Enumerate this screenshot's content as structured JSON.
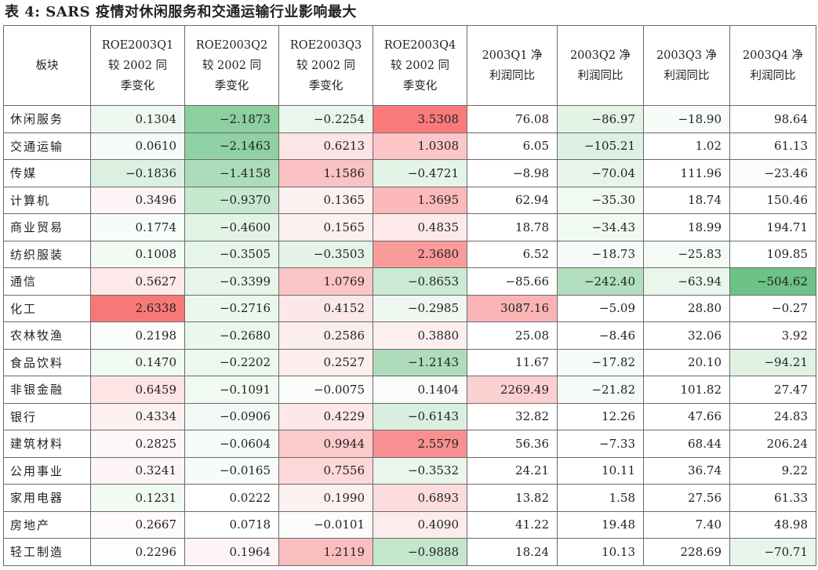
{
  "title": "表 4:  SARS 疫情对休闲服务和交通运输行业影响最大",
  "headers": [
    [
      "板块"
    ],
    [
      "ROE2003Q1",
      "较 2002 同",
      "季变化"
    ],
    [
      "ROE2003Q2",
      "较 2002 同",
      "季变化"
    ],
    [
      "ROE2003Q3",
      "较 2002 同",
      "季变化"
    ],
    [
      "ROE2003Q4",
      "较 2002 同",
      "季变化"
    ],
    [
      "2003Q1 净",
      "利润同比"
    ],
    [
      "2003Q2 净",
      "利润同比"
    ],
    [
      "2003Q3 净",
      "利润同比"
    ],
    [
      "2003Q4 净",
      "利润同比"
    ]
  ],
  "rows": [
    {
      "name": "休闲服务",
      "values": [
        "0.1304",
        "-2.1873",
        "-0.2254",
        "3.5308",
        "76.08",
        "-86.97",
        "-18.90",
        "98.64"
      ],
      "colors": [
        "#eef8f0",
        "#8cd0a0",
        "#eaf6ec",
        "#fa7a7a",
        "#ffffff",
        "#e3f3e6",
        "#f7fcf8",
        "#ffffff"
      ]
    },
    {
      "name": "交通运输",
      "values": [
        "0.0610",
        "-2.1463",
        "0.6213",
        "1.0308",
        "6.05",
        "-105.21",
        "1.02",
        "61.13"
      ],
      "colors": [
        "#f5fbf6",
        "#8fd1a2",
        "#fde4e5",
        "#fcc6c7",
        "#ffffff",
        "#dcf1e1",
        "#ffffff",
        "#ffffff"
      ]
    },
    {
      "name": "传媒",
      "values": [
        "-0.1836",
        "-1.4158",
        "1.1586",
        "-0.4721",
        "-8.98",
        "-70.04",
        "111.96",
        "-23.46"
      ],
      "colors": [
        "#dcf0e1",
        "#addcba",
        "#fbc2c3",
        "#e4f4e7",
        "#ffffff",
        "#e6f4e9",
        "#ffffff",
        "#f9fcfa"
      ]
    },
    {
      "name": "计算机",
      "values": [
        "0.3496",
        "-0.9370",
        "0.1365",
        "1.3695",
        "62.94",
        "-35.30",
        "18.74",
        "150.46"
      ],
      "colors": [
        "#fdf4f5",
        "#c6e8cf",
        "#fdf0f1",
        "#fbb9ba",
        "#ffffff",
        "#f1f9f3",
        "#ffffff",
        "#ffffff"
      ]
    },
    {
      "name": "商业贸易",
      "values": [
        "0.1774",
        "-0.4600",
        "0.1565",
        "0.4835",
        "18.78",
        "-34.43",
        "18.99",
        "194.71"
      ],
      "colors": [
        "#f8fcf9",
        "#e2f3e6",
        "#fdf0f1",
        "#fde9ea",
        "#ffffff",
        "#f1f9f3",
        "#ffffff",
        "#ffffff"
      ]
    },
    {
      "name": "纺织服装",
      "values": [
        "0.1008",
        "-0.3505",
        "-0.3503",
        "2.3680",
        "6.52",
        "-18.73",
        "-25.83",
        "109.85"
      ],
      "colors": [
        "#f2faf4",
        "#e6f5e9",
        "#e3f3e7",
        "#f99a9b",
        "#ffffff",
        "#f6fbf7",
        "#f4faf5",
        "#ffffff"
      ]
    },
    {
      "name": "通信",
      "values": [
        "0.5627",
        "-0.3399",
        "1.0769",
        "-0.8653",
        "-85.66",
        "-242.40",
        "-63.94",
        "-504.62"
      ],
      "colors": [
        "#fde9ea",
        "#e7f5ea",
        "#fbc5c6",
        "#cbead3",
        "#ffffff",
        "#b2dfbe",
        "#e9f6ec",
        "#6cc287"
      ]
    },
    {
      "name": "化工",
      "values": [
        "2.6338",
        "-0.2716",
        "0.4152",
        "-0.2985",
        "3087.16",
        "-5.09",
        "28.80",
        "-0.27"
      ],
      "colors": [
        "#f87878",
        "#eaf7ed",
        "#fde8e9",
        "#eef8f0",
        "#fab4b5",
        "#ffffff",
        "#ffffff",
        "#ffffff"
      ]
    },
    {
      "name": "农林牧渔",
      "values": [
        "0.2198",
        "-0.2680",
        "0.2586",
        "0.3880",
        "25.08",
        "-8.46",
        "32.06",
        "3.92"
      ],
      "colors": [
        "#fbfdfb",
        "#eaf7ed",
        "#fdeeee",
        "#fdeef0",
        "#ffffff",
        "#ffffff",
        "#ffffff",
        "#ffffff"
      ]
    },
    {
      "name": "食品饮料",
      "values": [
        "0.1470",
        "-0.2202",
        "0.2527",
        "-1.2143",
        "11.67",
        "-17.82",
        "20.10",
        "-94.21"
      ],
      "colors": [
        "#f0f9f2",
        "#ecf7ef",
        "#fdeeee",
        "#aedcba",
        "#ffffff",
        "#f7fbf8",
        "#ffffff",
        "#e0f2e4"
      ]
    },
    {
      "name": "非银金融",
      "values": [
        "0.6459",
        "-0.1091",
        "-0.0075",
        "0.1404",
        "2269.49",
        "-21.82",
        "101.82",
        "27.47"
      ],
      "colors": [
        "#fde4e5",
        "#f1f9f3",
        "#fbfdfb",
        "#f9fcfa",
        "#fcd0d1",
        "#f6fbf7",
        "#ffffff",
        "#ffffff"
      ]
    },
    {
      "name": "银行",
      "values": [
        "0.4334",
        "-0.0906",
        "0.4229",
        "-0.6143",
        "32.82",
        "12.26",
        "47.66",
        "24.83"
      ],
      "colors": [
        "#fdf0f1",
        "#f3faf5",
        "#fde7e8",
        "#daefe0",
        "#ffffff",
        "#ffffff",
        "#ffffff",
        "#ffffff"
      ]
    },
    {
      "name": "建筑材料",
      "values": [
        "0.2825",
        "-0.0604",
        "0.9944",
        "2.5579",
        "56.36",
        "-7.33",
        "68.44",
        "206.24"
      ],
      "colors": [
        "#fdf7f7",
        "#f5fbf6",
        "#fbcacb",
        "#f88f90",
        "#ffffff",
        "#ffffff",
        "#ffffff",
        "#ffffff"
      ]
    },
    {
      "name": "公用事业",
      "values": [
        "0.3241",
        "-0.0165",
        "0.7556",
        "-0.3532",
        "24.21",
        "10.11",
        "36.74",
        "9.22"
      ],
      "colors": [
        "#fdf4f5",
        "#f8fcf9",
        "#fcd8d9",
        "#eaf6ec",
        "#ffffff",
        "#ffffff",
        "#ffffff",
        "#ffffff"
      ]
    },
    {
      "name": "家用电器",
      "values": [
        "0.1231",
        "0.0222",
        "0.1990",
        "0.6893",
        "13.82",
        "1.58",
        "27.56",
        "61.33"
      ],
      "colors": [
        "#f1faf3",
        "#ffffff",
        "#fdf0f1",
        "#fcdcdd",
        "#ffffff",
        "#ffffff",
        "#ffffff",
        "#ffffff"
      ]
    },
    {
      "name": "房地产",
      "values": [
        "0.2667",
        "0.0718",
        "-0.0101",
        "0.4090",
        "41.22",
        "19.48",
        "7.40",
        "48.98"
      ],
      "colors": [
        "#fefafa",
        "#ffffff",
        "#fbfdfb",
        "#fdecec",
        "#ffffff",
        "#ffffff",
        "#ffffff",
        "#ffffff"
      ]
    },
    {
      "name": "轻工制造",
      "values": [
        "0.2296",
        "0.1964",
        "1.2119",
        "-0.9888",
        "18.24",
        "10.13",
        "228.69",
        "-70.71"
      ],
      "colors": [
        "#fdfdfd",
        "#fdf5f5",
        "#fbbebf",
        "#c3e6cc",
        "#ffffff",
        "#ffffff",
        "#ffffff",
        "#e7f5ea"
      ]
    }
  ]
}
